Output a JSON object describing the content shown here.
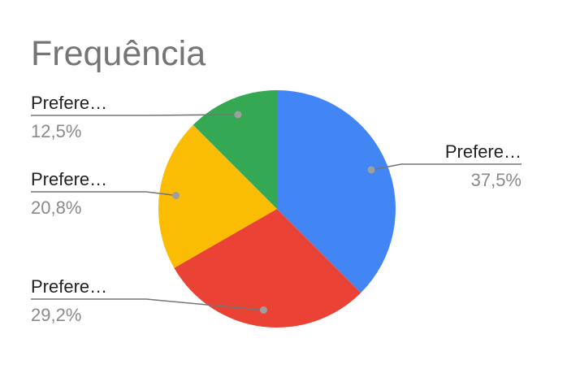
{
  "chart_data": {
    "type": "pie",
    "title": "Frequência",
    "slices": [
      {
        "label": "Prefere…",
        "value": 37.5,
        "pct_label": "37,5%",
        "color": "#4285f4"
      },
      {
        "label": "Prefere…",
        "value": 29.2,
        "pct_label": "29,2%",
        "color": "#ea4335"
      },
      {
        "label": "Prefere…",
        "value": 20.8,
        "pct_label": "20,8%",
        "color": "#fbbc04"
      },
      {
        "label": "Prefere…",
        "value": 12.5,
        "pct_label": "12,5%",
        "color": "#34a853"
      }
    ],
    "start": "top",
    "direction": "clockwise",
    "labels": "outside-with-leader-lines",
    "legend": "none"
  }
}
